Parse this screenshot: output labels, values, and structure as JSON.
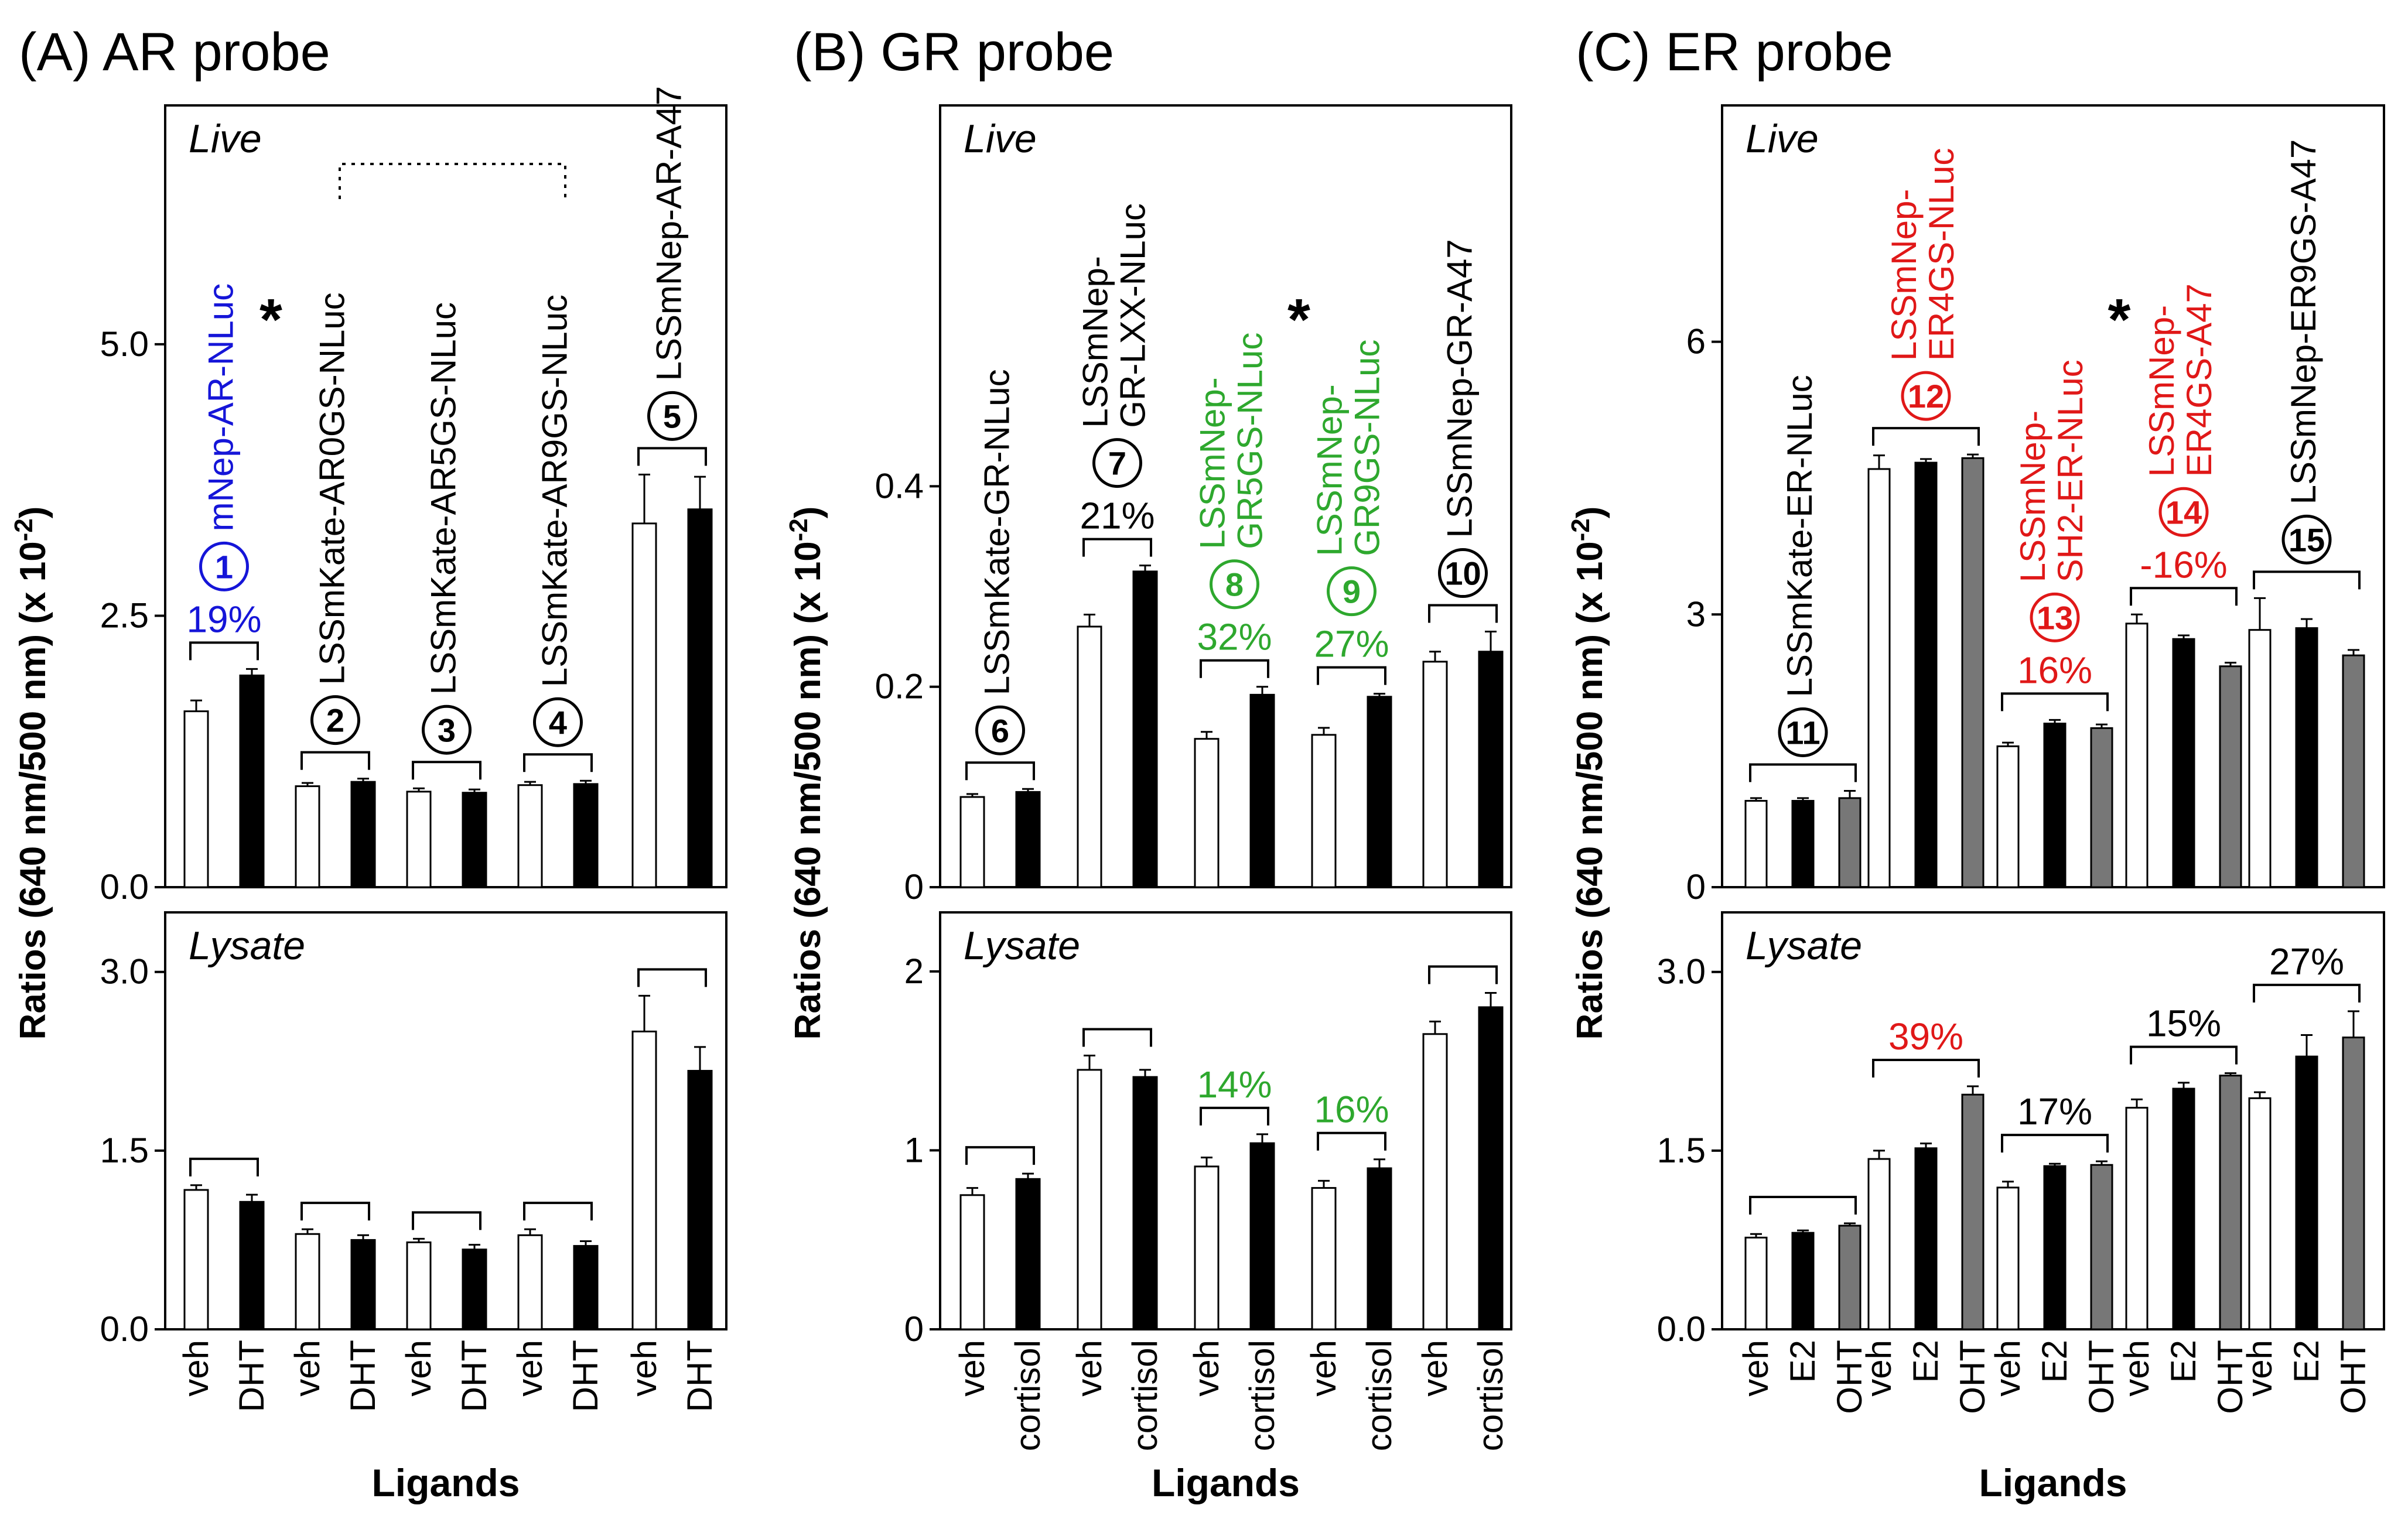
{
  "chart_data": [
    {
      "type": "bar",
      "title": "(A) AR probe",
      "xlabel": "Ligands",
      "ylabel": "Ratios (640 nm/500 nm) (x 10",
      "ylabel_exp": "-2",
      "ylabel_tail": ")",
      "ligands": [
        "veh",
        "DHT"
      ],
      "fill_colors": [
        "#ffffff",
        "#000000"
      ],
      "live": {
        "label": "Live",
        "ylim": [
          0,
          7.2
        ],
        "ticks": [
          "0.0",
          "2.5",
          "5.0"
        ],
        "tick_values": [
          0,
          2.5,
          5.0
        ],
        "bars": [
          [
            1.62,
            1.95
          ],
          [
            0.93,
            0.97
          ],
          [
            0.88,
            0.87
          ],
          [
            0.94,
            0.95
          ],
          [
            3.35,
            3.48
          ]
        ],
        "errs": [
          [
            0.1,
            0.06
          ],
          [
            0.03,
            0.03
          ],
          [
            0.03,
            0.03
          ],
          [
            0.03,
            0.03
          ],
          [
            0.45,
            0.3
          ]
        ],
        "percent": [
          "19%",
          "",
          "",
          "",
          ""
        ],
        "percent_colors": [
          "#1515d8",
          "",
          "",
          "",
          ""
        ],
        "numbers": [
          "1",
          "2",
          "3",
          "4",
          "5"
        ],
        "number_colors": [
          "#1515d8",
          "#000000",
          "#000000",
          "#000000",
          "#000000"
        ],
        "names": [
          [
            "mNep-AR-NLuc"
          ],
          [
            "LSSmKate-AR0GS-NLuc"
          ],
          [
            "LSSmKate-AR5GS-NLuc"
          ],
          [
            "LSSmKate-AR9GS-NLuc"
          ],
          [
            "LSSmNep-AR-A47"
          ]
        ],
        "name_colors": [
          "#1515d8",
          "#000000",
          "#000000",
          "#000000",
          "#000000"
        ],
        "stars": [
          "*",
          "",
          "",
          "",
          ""
        ]
      },
      "lysate": {
        "label": "Lysate",
        "ylim": [
          0,
          3.5
        ],
        "ticks": [
          "0.0",
          "1.5",
          "3.0"
        ],
        "tick_values": [
          0,
          1.5,
          3.0
        ],
        "bars": [
          [
            1.17,
            1.07
          ],
          [
            0.8,
            0.75
          ],
          [
            0.73,
            0.67
          ],
          [
            0.79,
            0.7
          ],
          [
            2.5,
            2.17
          ]
        ],
        "errs": [
          [
            0.04,
            0.06
          ],
          [
            0.04,
            0.04
          ],
          [
            0.03,
            0.04
          ],
          [
            0.05,
            0.04
          ],
          [
            0.3,
            0.2
          ]
        ],
        "percent": [
          "",
          "",
          "",
          "",
          ""
        ],
        "percent_colors": [
          "",
          "",
          "",
          "",
          ""
        ]
      }
    },
    {
      "type": "bar",
      "title": "(B) GR probe",
      "xlabel": "Ligands",
      "ylabel": "Ratios (640 nm/500 nm) (x 10",
      "ylabel_exp": "-2",
      "ylabel_tail": ")",
      "ligands": [
        "veh",
        "cortisol"
      ],
      "fill_colors": [
        "#ffffff",
        "#000000"
      ],
      "live": {
        "label": "Live",
        "ylim": [
          0,
          0.78
        ],
        "ticks": [
          "0",
          "0.2",
          "0.4"
        ],
        "tick_values": [
          0,
          0.2,
          0.4
        ],
        "bars": [
          [
            0.09,
            0.095
          ],
          [
            0.26,
            0.315
          ],
          [
            0.148,
            0.192
          ],
          [
            0.152,
            0.19
          ],
          [
            0.225,
            0.235
          ]
        ],
        "errs": [
          [
            0.003,
            0.003
          ],
          [
            0.012,
            0.006
          ],
          [
            0.007,
            0.008
          ],
          [
            0.007,
            0.003
          ],
          [
            0.01,
            0.02
          ]
        ],
        "percent": [
          "",
          "21%",
          "32%",
          "27%",
          ""
        ],
        "percent_colors": [
          "",
          "#000000",
          "#2ea82e",
          "#2ea82e",
          ""
        ],
        "numbers": [
          "6",
          "7",
          "8",
          "9",
          "10"
        ],
        "number_colors": [
          "#000000",
          "#000000",
          "#2ea82e",
          "#2ea82e",
          "#000000"
        ],
        "names": [
          [
            "LSSmKate-GR-NLuc"
          ],
          [
            "LSSmNep-",
            "GR-LXX-NLuc"
          ],
          [
            "LSSmNep-",
            "GR5GS-NLuc"
          ],
          [
            "LSSmNep-",
            "GR9GS-NLuc"
          ],
          [
            "LSSmNep-GR-A47"
          ]
        ],
        "name_colors": [
          "#000000",
          "#000000",
          "#2ea82e",
          "#2ea82e",
          "#000000"
        ],
        "stars": [
          "",
          "",
          "*",
          "",
          ""
        ]
      },
      "lysate": {
        "label": "Lysate",
        "ylim": [
          0,
          2.33
        ],
        "ticks": [
          "0",
          "1",
          "2"
        ],
        "tick_values": [
          0,
          1,
          2
        ],
        "bars": [
          [
            0.75,
            0.84
          ],
          [
            1.45,
            1.41
          ],
          [
            0.91,
            1.04
          ],
          [
            0.79,
            0.9
          ],
          [
            1.65,
            1.8
          ]
        ],
        "errs": [
          [
            0.04,
            0.03
          ],
          [
            0.08,
            0.04
          ],
          [
            0.05,
            0.05
          ],
          [
            0.04,
            0.05
          ],
          [
            0.07,
            0.08
          ]
        ],
        "percent": [
          "",
          "",
          "14%",
          "16%",
          ""
        ],
        "percent_colors": [
          "",
          "",
          "#2ea82e",
          "#2ea82e",
          ""
        ]
      }
    },
    {
      "type": "bar",
      "title": "(C) ER probe",
      "xlabel": "Ligands",
      "ylabel": "Ratios (640 nm/500 nm) (x 10",
      "ylabel_exp": "-2",
      "ylabel_tail": ")",
      "ligands": [
        "veh",
        "E2",
        "OHT"
      ],
      "fill_colors": [
        "#ffffff",
        "#000000",
        "#777777"
      ],
      "live": {
        "label": "Live",
        "ylim": [
          0,
          8.6
        ],
        "ticks": [
          "0",
          "3",
          "6"
        ],
        "tick_values": [
          0,
          3,
          6
        ],
        "bars": [
          [
            0.95,
            0.95,
            0.98
          ],
          [
            4.6,
            4.67,
            4.72
          ],
          [
            1.55,
            1.8,
            1.75
          ],
          [
            2.9,
            2.73,
            2.43
          ],
          [
            2.83,
            2.85,
            2.55
          ]
        ],
        "errs": [
          [
            0.03,
            0.03,
            0.08
          ],
          [
            0.15,
            0.04,
            0.04
          ],
          [
            0.04,
            0.04,
            0.04
          ],
          [
            0.1,
            0.04,
            0.04
          ],
          [
            0.35,
            0.1,
            0.06
          ]
        ],
        "percent": [
          "",
          "",
          "16%",
          "-16%",
          ""
        ],
        "percent_colors": [
          "",
          "",
          "#e01818",
          "#e01818",
          ""
        ],
        "numbers": [
          "11",
          "12",
          "13",
          "14",
          "15"
        ],
        "number_colors": [
          "#000000",
          "#e01818",
          "#e01818",
          "#e01818",
          "#000000"
        ],
        "names": [
          [
            "LSSmKate-ER-NLuc"
          ],
          [
            "LSSmNep-",
            "ER4GS-NLuc"
          ],
          [
            "LSSmNep-",
            "SH2-ER-NLuc"
          ],
          [
            "LSSmNep-",
            "ER4GS-A47"
          ],
          [
            "LSSmNep-ER9GS-A47"
          ]
        ],
        "name_colors": [
          "#000000",
          "#e01818",
          "#e01818",
          "#e01818",
          "#000000"
        ],
        "stars": [
          "",
          "",
          "*",
          "",
          ""
        ]
      },
      "lysate": {
        "label": "Lysate",
        "ylim": [
          0,
          3.5
        ],
        "ticks": [
          "0.0",
          "1.5",
          "3.0"
        ],
        "tick_values": [
          0,
          1.5,
          3.0
        ],
        "bars": [
          [
            0.77,
            0.81,
            0.87
          ],
          [
            1.43,
            1.52,
            1.97
          ],
          [
            1.19,
            1.37,
            1.38
          ],
          [
            1.86,
            2.02,
            2.13
          ],
          [
            1.94,
            2.29,
            2.45
          ]
        ],
        "errs": [
          [
            0.03,
            0.02,
            0.02
          ],
          [
            0.07,
            0.04,
            0.07
          ],
          [
            0.05,
            0.02,
            0.03
          ],
          [
            0.07,
            0.05,
            0.02
          ],
          [
            0.05,
            0.18,
            0.22
          ]
        ],
        "percent": [
          "",
          "39%",
          "17%",
          "15%",
          "27%"
        ],
        "percent_colors": [
          "",
          "#e01818",
          "#000000",
          "#000000",
          "#000000"
        ]
      }
    }
  ]
}
